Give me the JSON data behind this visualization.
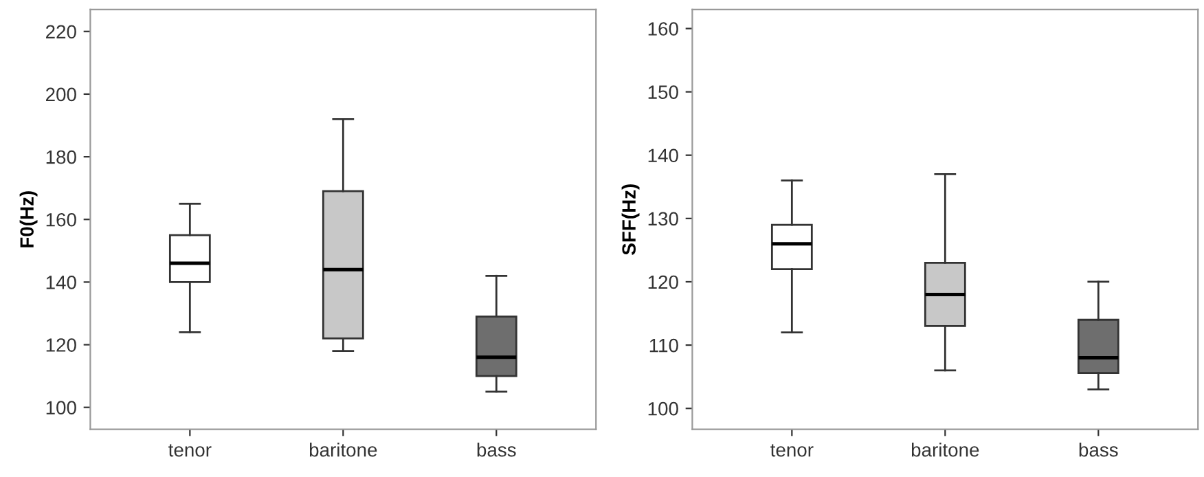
{
  "chart_data": [
    {
      "type": "box",
      "ylabel": "F0(Hz)",
      "categories": [
        "tenor",
        "baritone",
        "bass"
      ],
      "colors": [
        "#ffffff",
        "#c8c8c8",
        "#6e6e6e"
      ],
      "boxes": [
        {
          "low": 124,
          "q1": 140,
          "median": 146,
          "q3": 155,
          "high": 165
        },
        {
          "low": 118,
          "q1": 122,
          "median": 144,
          "q3": 169,
          "high": 192
        },
        {
          "low": 105,
          "q1": 110,
          "median": 116,
          "q3": 129,
          "high": 142
        }
      ],
      "ylim": [
        93,
        227
      ],
      "yticks": [
        100,
        120,
        140,
        160,
        180,
        200,
        220
      ],
      "grid": false
    },
    {
      "type": "box",
      "ylabel": "SFF(Hz)",
      "categories": [
        "tenor",
        "baritone",
        "bass"
      ],
      "colors": [
        "#ffffff",
        "#c8c8c8",
        "#6e6e6e"
      ],
      "boxes": [
        {
          "low": 112,
          "q1": 122,
          "median": 126,
          "q3": 129,
          "high": 136
        },
        {
          "low": 106,
          "q1": 113,
          "median": 118,
          "q3": 123,
          "high": 137
        },
        {
          "low": 103,
          "q1": 105.6,
          "median": 108,
          "q3": 114,
          "high": 120
        }
      ],
      "ylim": [
        96.7,
        163
      ],
      "yticks": [
        100,
        110,
        120,
        130,
        140,
        150,
        160
      ],
      "grid": false
    }
  ]
}
